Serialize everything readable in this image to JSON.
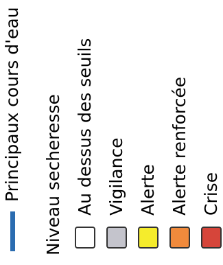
{
  "legend": {
    "items": [
      {
        "label": "Principaux cours d'eau",
        "kind": "line",
        "color": "#2b6cb0"
      },
      {
        "label": "Niveau secheresse",
        "kind": "heading"
      },
      {
        "label": "Au dessus des seuils",
        "kind": "box",
        "color": "#ffffff"
      },
      {
        "label": "Vigilance",
        "kind": "box",
        "color": "#c4c4cc"
      },
      {
        "label": "Alerte",
        "kind": "box",
        "color": "#f5ec2c"
      },
      {
        "label": "Alerte renforcée",
        "kind": "box",
        "color": "#f08a3c"
      },
      {
        "label": "Crise",
        "kind": "box",
        "color": "#d6453a"
      }
    ]
  }
}
